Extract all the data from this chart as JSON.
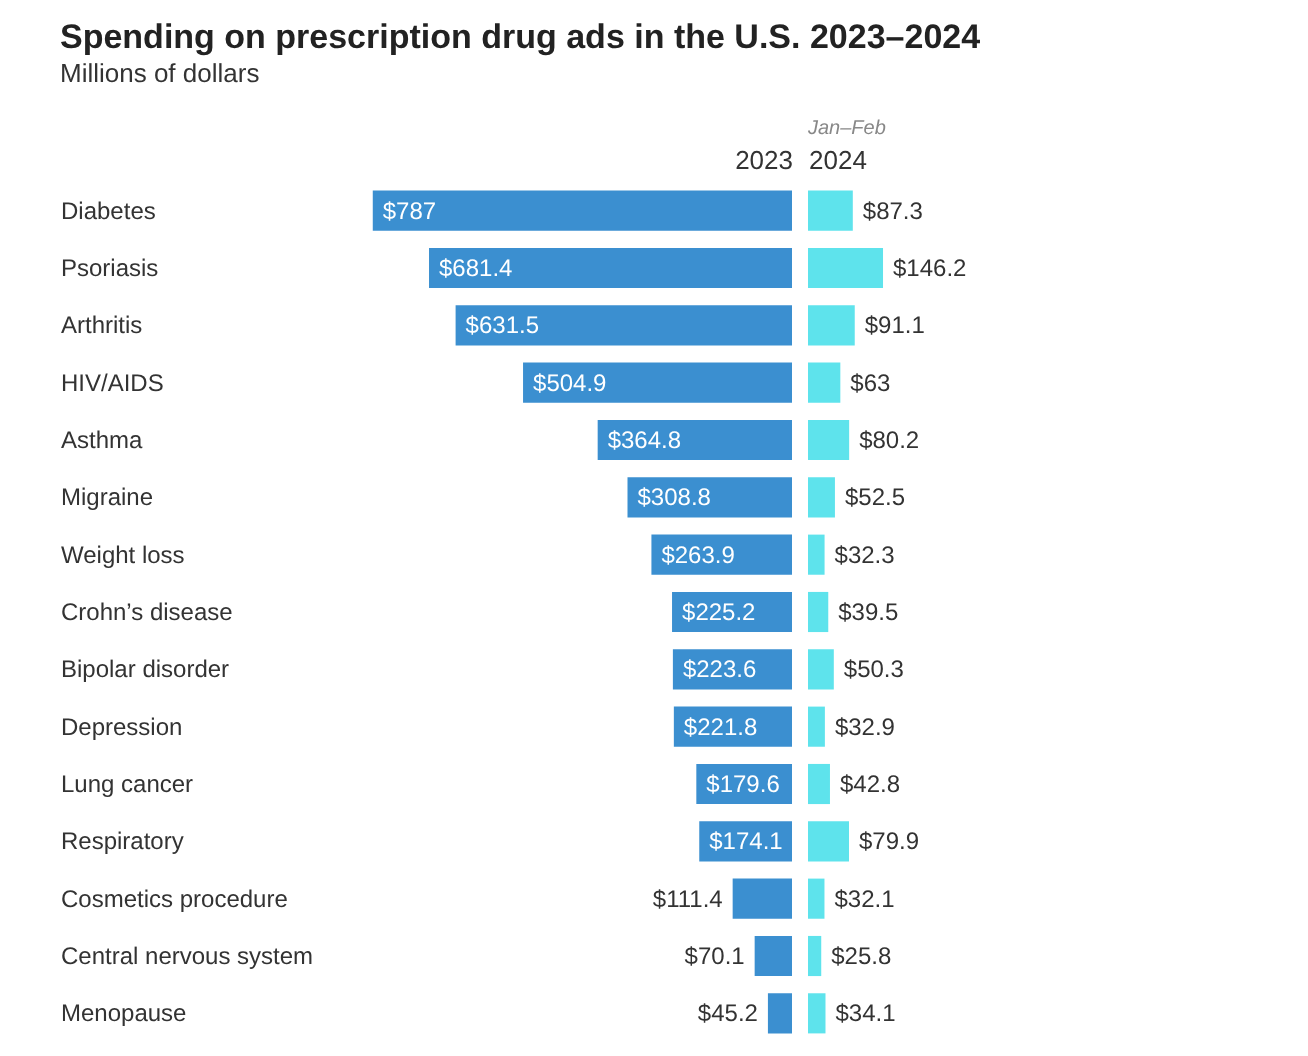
{
  "chart_data": [
    {
      "type": "bar",
      "orientation": "horizontal",
      "title": "Spending on prescription drug ads in the U.S. 2023–2024",
      "subtitle": "Millions of dollars",
      "tick_labels": "y",
      "categories": [
        "Diabetes",
        "Psoriasis",
        "Arthritis",
        "HIV/AIDS",
        "Asthma",
        "Migraine",
        "Weight loss",
        "Crohn’s disease",
        "Bipolar disorder",
        "Depression",
        "Lung cancer",
        "Respiratory",
        "Cosmetics procedure",
        "Central nervous system",
        "Menopause"
      ],
      "series": [
        {
          "name": "2023",
          "color": "#3b8fd0",
          "values": [
            787,
            681.4,
            631.5,
            504.9,
            364.8,
            308.8,
            263.9,
            225.2,
            223.6,
            221.8,
            179.6,
            174.1,
            111.4,
            70.1,
            45.2
          ],
          "value_labels": [
            "$787",
            "$681.4",
            "$631.5",
            "$504.9",
            "$364.8",
            "$308.8",
            "$263.9",
            "$225.2",
            "$223.6",
            "$221.8",
            "$179.6",
            "$174.1",
            "$111.4",
            "$70.1",
            "$45.2"
          ]
        }
      ]
    },
    {
      "type": "bar",
      "orientation": "horizontal",
      "tick_labels": false,
      "annotations": [
        "Jan–Feb"
      ],
      "series": [
        {
          "name": "2024",
          "color": "#5ee3ec",
          "values": [
            87.3,
            146.2,
            91.1,
            63,
            80.2,
            52.5,
            32.3,
            39.5,
            50.3,
            32.9,
            42.8,
            79.9,
            32.1,
            25.8,
            34.1
          ],
          "value_labels": [
            "$87.3",
            "$146.2",
            "$91.1",
            "$63",
            "$80.2",
            "$52.5",
            "$32.3",
            "$39.5",
            "$50.3",
            "$32.9",
            "$42.8",
            "$79.9",
            "$32.1",
            "$25.8",
            "$34.1"
          ]
        }
      ]
    }
  ]
}
